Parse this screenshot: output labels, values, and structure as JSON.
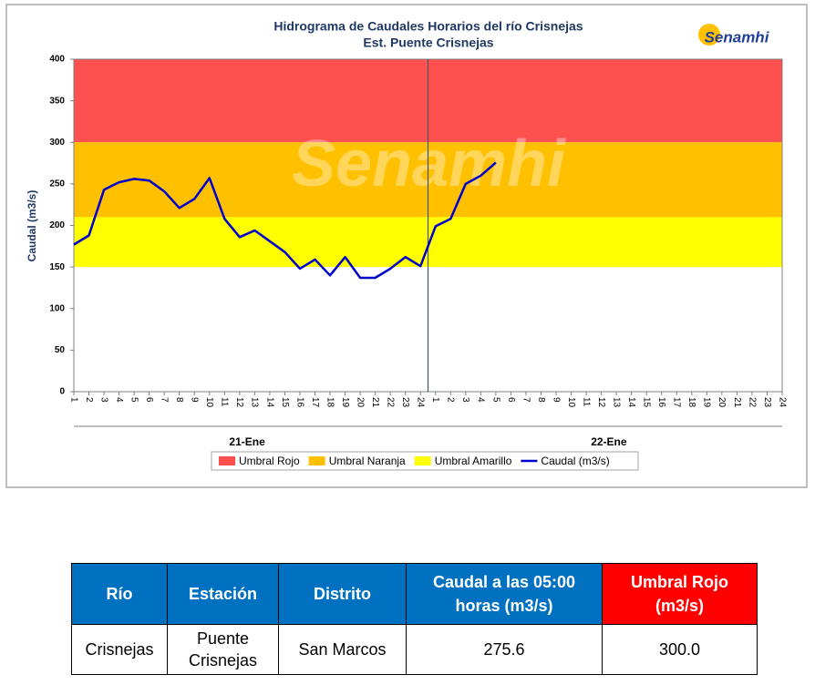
{
  "chart_data": {
    "type": "line",
    "title": "Hidrograma de Caudales Horarios del río Crisnejas",
    "subtitle": "Est. Puente Crisnejas",
    "logo": "Senamhi",
    "ylabel": "Caudal  (m3/s)",
    "categories": [
      "1",
      "2",
      "3",
      "4",
      "5",
      "6",
      "7",
      "8",
      "9",
      "10",
      "11",
      "12",
      "13",
      "14",
      "15",
      "16",
      "17",
      "18",
      "19",
      "20",
      "21",
      "22",
      "23",
      "24",
      "1",
      "2",
      "3",
      "4",
      "5",
      "6",
      "7",
      "8",
      "9",
      "10",
      "11",
      "12",
      "13",
      "14",
      "15",
      "16",
      "17",
      "18",
      "19",
      "20",
      "21",
      "22",
      "23",
      "24"
    ],
    "groups": [
      "21-Ene",
      "22-Ene"
    ],
    "ylim": [
      0,
      400
    ],
    "yticks": [
      0,
      50,
      100,
      150,
      200,
      250,
      300,
      350,
      400
    ],
    "bands": [
      {
        "name": "Umbral Rojo",
        "color": "#ff5050",
        "from": 300,
        "to": 400
      },
      {
        "name": "Umbral Naranja",
        "color": "#ffc000",
        "from": 210,
        "to": 300
      },
      {
        "name": "Umbral Amarillo",
        "color": "#ffff00",
        "from": 150,
        "to": 210
      }
    ],
    "series": [
      {
        "name": "Caudal (m3/s)",
        "color": "#0000cc",
        "values": [
          177,
          188,
          243,
          252,
          256,
          254,
          241,
          221,
          232,
          257,
          208,
          186,
          194,
          181,
          168,
          148,
          159,
          140,
          162,
          137,
          137,
          148,
          162,
          151,
          199,
          208,
          250,
          260,
          275.6,
          null,
          null,
          null,
          null,
          null,
          null,
          null,
          null,
          null,
          null,
          null,
          null,
          null,
          null,
          null,
          null,
          null,
          null,
          null
        ]
      }
    ]
  },
  "table": {
    "header": [
      "Río",
      "Estación",
      "Distrito",
      "Caudal a las 05:00 horas (m3/s)",
      "Umbral Rojo (m3/s)"
    ],
    "rows": [
      [
        "Crisnejas",
        "Puente Crisnejas",
        "San Marcos",
        "275.6",
        "300.0"
      ]
    ]
  }
}
